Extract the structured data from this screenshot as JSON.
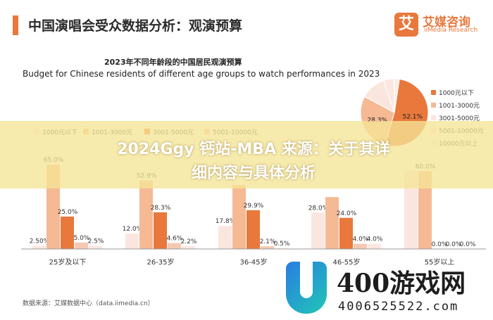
{
  "header": {
    "title": "中国演唱会受众数据分析：观演预算"
  },
  "logo": {
    "mark": "艾",
    "name": "艾媒咨询",
    "sub": "iiMedia Research"
  },
  "colors": {
    "accent": "#e8783c",
    "series": [
      "#fbe6df",
      "#f5b994",
      "#e8783c",
      "#f4c9b3",
      "#fce7e0",
      "#fbeee9"
    ]
  },
  "chart_data": [
    {
      "type": "bar",
      "title": "2023年不同年龄段的中国居民观演预算",
      "subtitle": "Budget for Chinese residents of different age groups to watch performances in 2023",
      "categories": [
        "25岁及以下",
        "26-35岁",
        "36-45岁",
        "46-55岁",
        "55岁以上"
      ],
      "series": [
        {
          "name": "1000元以下",
          "values": [
            2.5,
            12.0,
            17.8,
            28.0,
            60.0
          ]
        },
        {
          "name": "1001-3000元",
          "values": [
            65.0,
            52.9,
            49.3,
            40.0,
            60.0
          ]
        },
        {
          "name": "3001-5000元",
          "values": [
            25.0,
            28.3,
            29.9,
            24.0,
            0.0
          ]
        },
        {
          "name": "5001-10000元",
          "values": [
            5.0,
            4.6,
            2.1,
            4.0,
            0.0
          ]
        },
        {
          "name": "10000元以上",
          "values": [
            2.5,
            2.2,
            0.5,
            4.0,
            0.0
          ]
        }
      ],
      "data_labels": [
        [
          "2.50%",
          "65.0%",
          "25.0%",
          "5.0%",
          "2.5%"
        ],
        [
          "12.0%",
          "52.9%",
          "28.3%",
          "4.6%",
          "2.2%"
        ],
        [
          "17.8%",
          "",
          "29.9%",
          "2.1%",
          "0.5%"
        ],
        [
          "28.0%",
          "",
          "24.0%",
          "4.0%",
          "4.0%"
        ],
        [
          "",
          "60.0%",
          "0.0%",
          "0.0%",
          "0.0%"
        ]
      ],
      "legend_visible": [
        "1000元以下",
        "1001-3000元",
        "3001-5000元",
        "5001-10000元"
      ],
      "ylim": [
        0,
        70
      ]
    },
    {
      "type": "pie",
      "slices": [
        {
          "name": "1000元以下",
          "value": 52.1,
          "label": "52.1%"
        },
        {
          "name": "1001-3000元",
          "value": 28.3,
          "label": "28.3%"
        },
        {
          "name": "3001-5000元",
          "value": 12.0,
          "label": ""
        },
        {
          "name": "5001-10000元",
          "value": 5.0,
          "label": ""
        },
        {
          "name": "10000元以上",
          "value": 2.6,
          "label": ""
        }
      ],
      "legend": [
        "1000元以下",
        "1001-3000元",
        "3001-5000元",
        "5001-10000元",
        "10000元以上"
      ],
      "legend_position": "right"
    }
  ],
  "banner": {
    "line1": "2024Ggy 钙站-MBA 来源：关于其详",
    "line2": "细内容与具体分析"
  },
  "source": "数据来源：艾媒数据中心（data.iimedia.cn）",
  "watermark": {
    "text": "400游戏网",
    "number": "4006525522.com"
  }
}
